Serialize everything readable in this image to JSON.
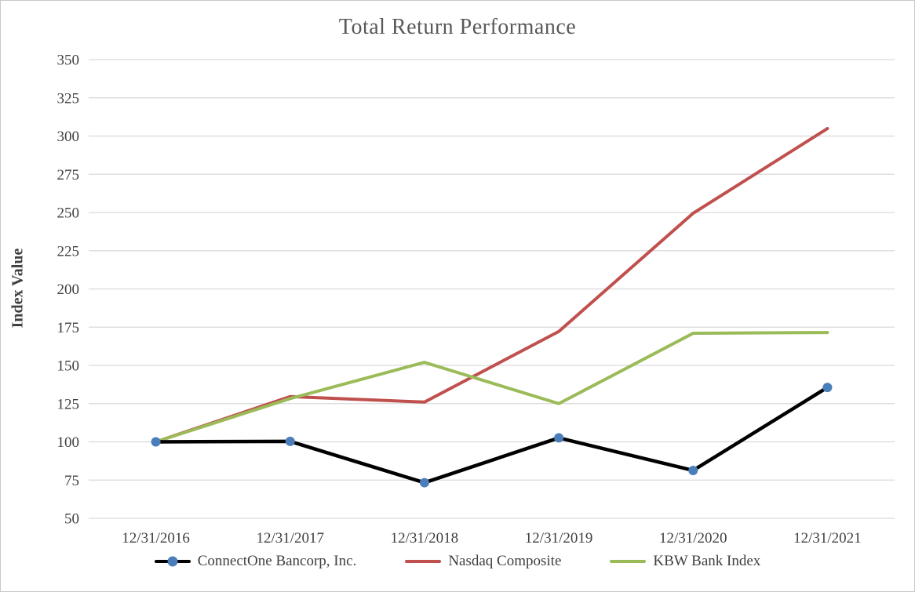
{
  "window": {
    "background": "#ffffff",
    "border_color": "#c9c9c9"
  },
  "chart": {
    "title_color": "#595959",
    "text_color": "#3f3f3f",
    "gridline_color": "#d9d9d9"
  },
  "chart_data": {
    "type": "line",
    "title": "Total Return Performance",
    "xlabel": "",
    "ylabel": "Index Value",
    "categories": [
      "12/31/2016",
      "12/31/2017",
      "12/31/2018",
      "12/31/2019",
      "12/31/2020",
      "12/31/2021"
    ],
    "series": [
      {
        "name": "ConnectOne Bancorp, Inc.",
        "color": "#000000",
        "line_width": 4.5,
        "marker": "circle",
        "marker_color": "#4a7ebb",
        "values": [
          100,
          100.3,
          73.3,
          102.6,
          81.3,
          135.6
        ]
      },
      {
        "name": "Nasdaq Composite",
        "color": "#c0504d",
        "line_width": 4,
        "marker": "none",
        "marker_color": null,
        "values": [
          100,
          129.6,
          126.0,
          172.2,
          249.5,
          304.9
        ]
      },
      {
        "name": "KBW Bank Index",
        "color": "#9bbb59",
        "line_width": 4,
        "marker": "none",
        "marker_color": null,
        "values": [
          100,
          128.3,
          152.0,
          125.0,
          171.0,
          171.5
        ]
      }
    ],
    "ylim": [
      50,
      350
    ],
    "ytick_step": 25,
    "grid": "horizontal",
    "legend_position": "bottom"
  }
}
